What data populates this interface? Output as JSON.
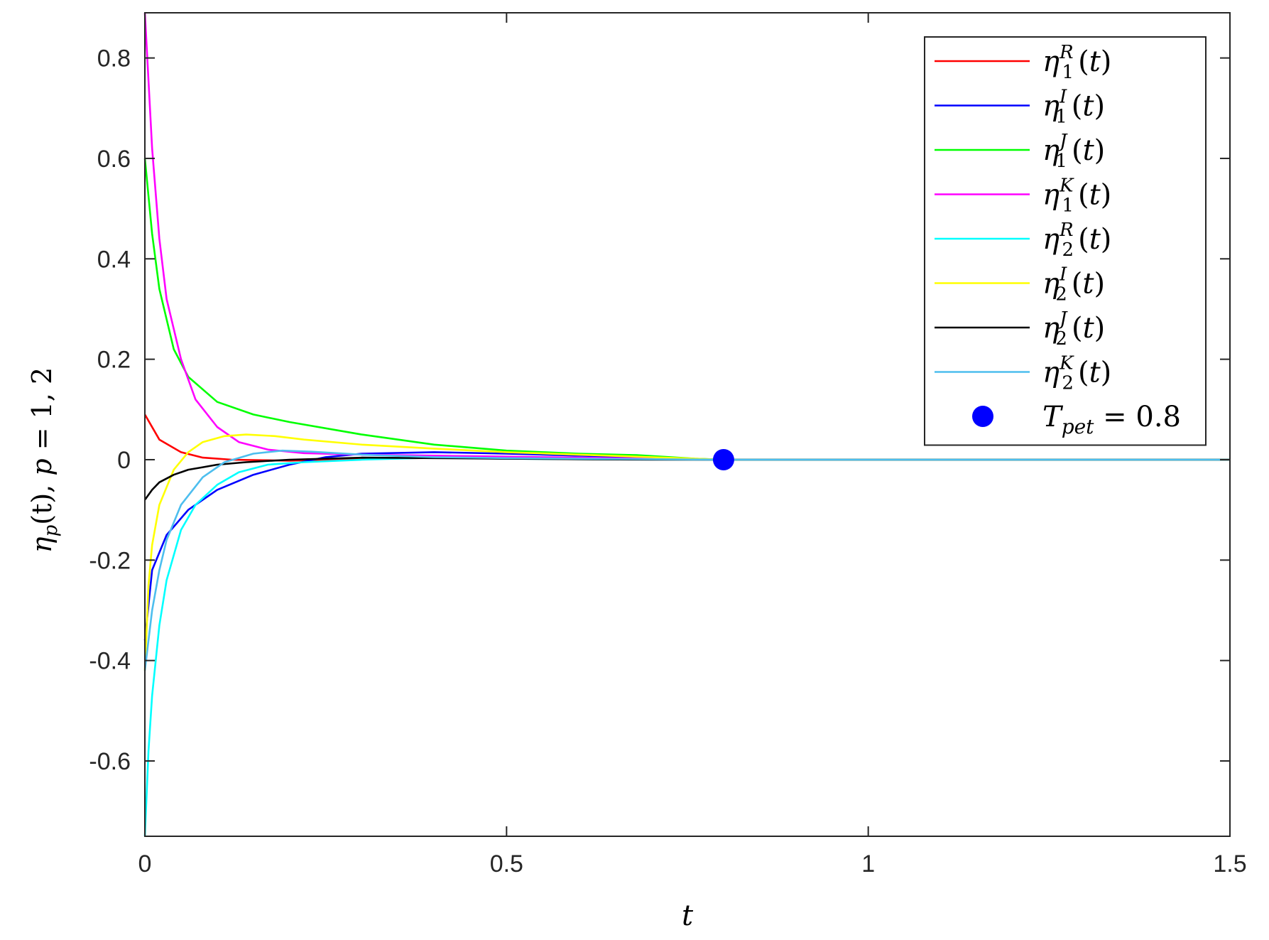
{
  "chart_data": {
    "type": "line",
    "xlabel": "t",
    "ylabel": {
      "symbol": "η",
      "sub": "p",
      "arg": "(t),  ",
      "tail_var": "p",
      "tail_rest": " = 1, 2"
    },
    "xlim": [
      0,
      1.5
    ],
    "ylim": [
      -0.75,
      0.89
    ],
    "xticks": [
      0,
      0.5,
      1,
      1.5
    ],
    "xtick_labels": [
      "0",
      "0.5",
      "1",
      "1.5"
    ],
    "yticks": [
      -0.6,
      -0.4,
      -0.2,
      0,
      0.2,
      0.4,
      0.6,
      0.8
    ],
    "ytick_labels": [
      "-0.6",
      "-0.4",
      "-0.2",
      "0",
      "0.2",
      "0.4",
      "0.6",
      "0.8"
    ],
    "grid": false,
    "legend_position": "top-right",
    "series": [
      {
        "name": "η_1^R(t)",
        "sym": "η",
        "sub": "1",
        "sup": "R",
        "color": "#ff0000",
        "x": [
          0,
          0.02,
          0.05,
          0.08,
          0.12,
          0.2,
          0.3,
          0.45,
          0.6,
          0.7,
          0.8,
          1.5
        ],
        "y": [
          0.09,
          0.04,
          0.015,
          0.004,
          0.0,
          -0.002,
          0.002,
          0.004,
          0.002,
          0.001,
          0,
          0
        ]
      },
      {
        "name": "η_1^I(t)",
        "sym": "η",
        "sub": "1",
        "sup": "I",
        "color": "#0000ff",
        "x": [
          0,
          0.01,
          0.03,
          0.06,
          0.1,
          0.15,
          0.2,
          0.25,
          0.3,
          0.4,
          0.5,
          0.6,
          0.7,
          0.8,
          1.5
        ],
        "y": [
          -0.36,
          -0.22,
          -0.15,
          -0.1,
          -0.06,
          -0.03,
          -0.01,
          0.005,
          0.012,
          0.015,
          0.012,
          0.008,
          0.004,
          0,
          0
        ]
      },
      {
        "name": "η_1^J(t)",
        "sym": "η",
        "sub": "1",
        "sup": "J",
        "color": "#00ff00",
        "x": [
          0,
          0.01,
          0.02,
          0.04,
          0.06,
          0.1,
          0.15,
          0.2,
          0.3,
          0.4,
          0.5,
          0.6,
          0.68,
          0.76,
          0.8,
          1.5
        ],
        "y": [
          0.6,
          0.45,
          0.34,
          0.22,
          0.165,
          0.115,
          0.09,
          0.075,
          0.05,
          0.03,
          0.018,
          0.012,
          0.009,
          0.002,
          0,
          0
        ]
      },
      {
        "name": "η_1^K(t)",
        "sym": "η",
        "sub": "1",
        "sup": "K",
        "color": "#ff00ff",
        "x": [
          0,
          0.01,
          0.02,
          0.03,
          0.05,
          0.07,
          0.1,
          0.13,
          0.17,
          0.22,
          0.3,
          0.4,
          0.5,
          0.6,
          0.7,
          0.8,
          1.5
        ],
        "y": [
          0.89,
          0.62,
          0.44,
          0.32,
          0.2,
          0.12,
          0.065,
          0.035,
          0.02,
          0.013,
          0.01,
          0.008,
          0.006,
          0.004,
          0.002,
          0,
          0
        ]
      },
      {
        "name": "η_2^R(t)",
        "sym": "η",
        "sub": "2",
        "sup": "R",
        "color": "#00ffff",
        "x": [
          0,
          0.005,
          0.01,
          0.02,
          0.03,
          0.05,
          0.07,
          0.1,
          0.13,
          0.17,
          0.22,
          0.3,
          0.4,
          0.5,
          0.6,
          0.8,
          1.5
        ],
        "y": [
          -0.75,
          -0.58,
          -0.47,
          -0.33,
          -0.24,
          -0.14,
          -0.09,
          -0.05,
          -0.025,
          -0.01,
          -0.005,
          0.0,
          0.004,
          0.002,
          0.001,
          0,
          0
        ]
      },
      {
        "name": "η_2^I(t)",
        "sym": "η",
        "sub": "2",
        "sup": "I",
        "color": "#ffff00",
        "x": [
          0,
          0.005,
          0.01,
          0.02,
          0.04,
          0.06,
          0.08,
          0.11,
          0.14,
          0.18,
          0.22,
          0.3,
          0.4,
          0.5,
          0.6,
          0.7,
          0.8,
          1.5
        ],
        "y": [
          -0.42,
          -0.25,
          -0.17,
          -0.09,
          -0.02,
          0.015,
          0.035,
          0.047,
          0.05,
          0.047,
          0.04,
          0.03,
          0.022,
          0.015,
          0.01,
          0.005,
          0,
          0
        ]
      },
      {
        "name": "η_2^J(t)",
        "sym": "η",
        "sub": "2",
        "sup": "J",
        "color": "#000000",
        "x": [
          0,
          0.01,
          0.02,
          0.04,
          0.06,
          0.08,
          0.1,
          0.14,
          0.2,
          0.3,
          0.4,
          0.5,
          0.6,
          0.7,
          0.8,
          1.5
        ],
        "y": [
          -0.08,
          -0.06,
          -0.045,
          -0.03,
          -0.02,
          -0.015,
          -0.01,
          -0.005,
          0.0,
          0.004,
          0.003,
          0.002,
          0.001,
          0.0,
          0,
          0
        ]
      },
      {
        "name": "η_2^K(t)",
        "sym": "η",
        "sub": "2",
        "sup": "K",
        "color": "#4dbeee",
        "x": [
          0,
          0.005,
          0.01,
          0.02,
          0.03,
          0.05,
          0.08,
          0.11,
          0.15,
          0.19,
          0.23,
          0.3,
          0.4,
          0.5,
          0.6,
          0.7,
          0.8,
          1.5
        ],
        "y": [
          -0.42,
          -0.36,
          -0.3,
          -0.22,
          -0.16,
          -0.09,
          -0.035,
          -0.005,
          0.012,
          0.018,
          0.016,
          0.01,
          0.005,
          0.003,
          0.002,
          0.001,
          0,
          0
        ]
      }
    ],
    "marker": {
      "x": 0.8,
      "y": 0,
      "color": "#0000ff",
      "label_sym": "T",
      "label_sub": "pet",
      "label_rest": " = 0.8"
    }
  }
}
